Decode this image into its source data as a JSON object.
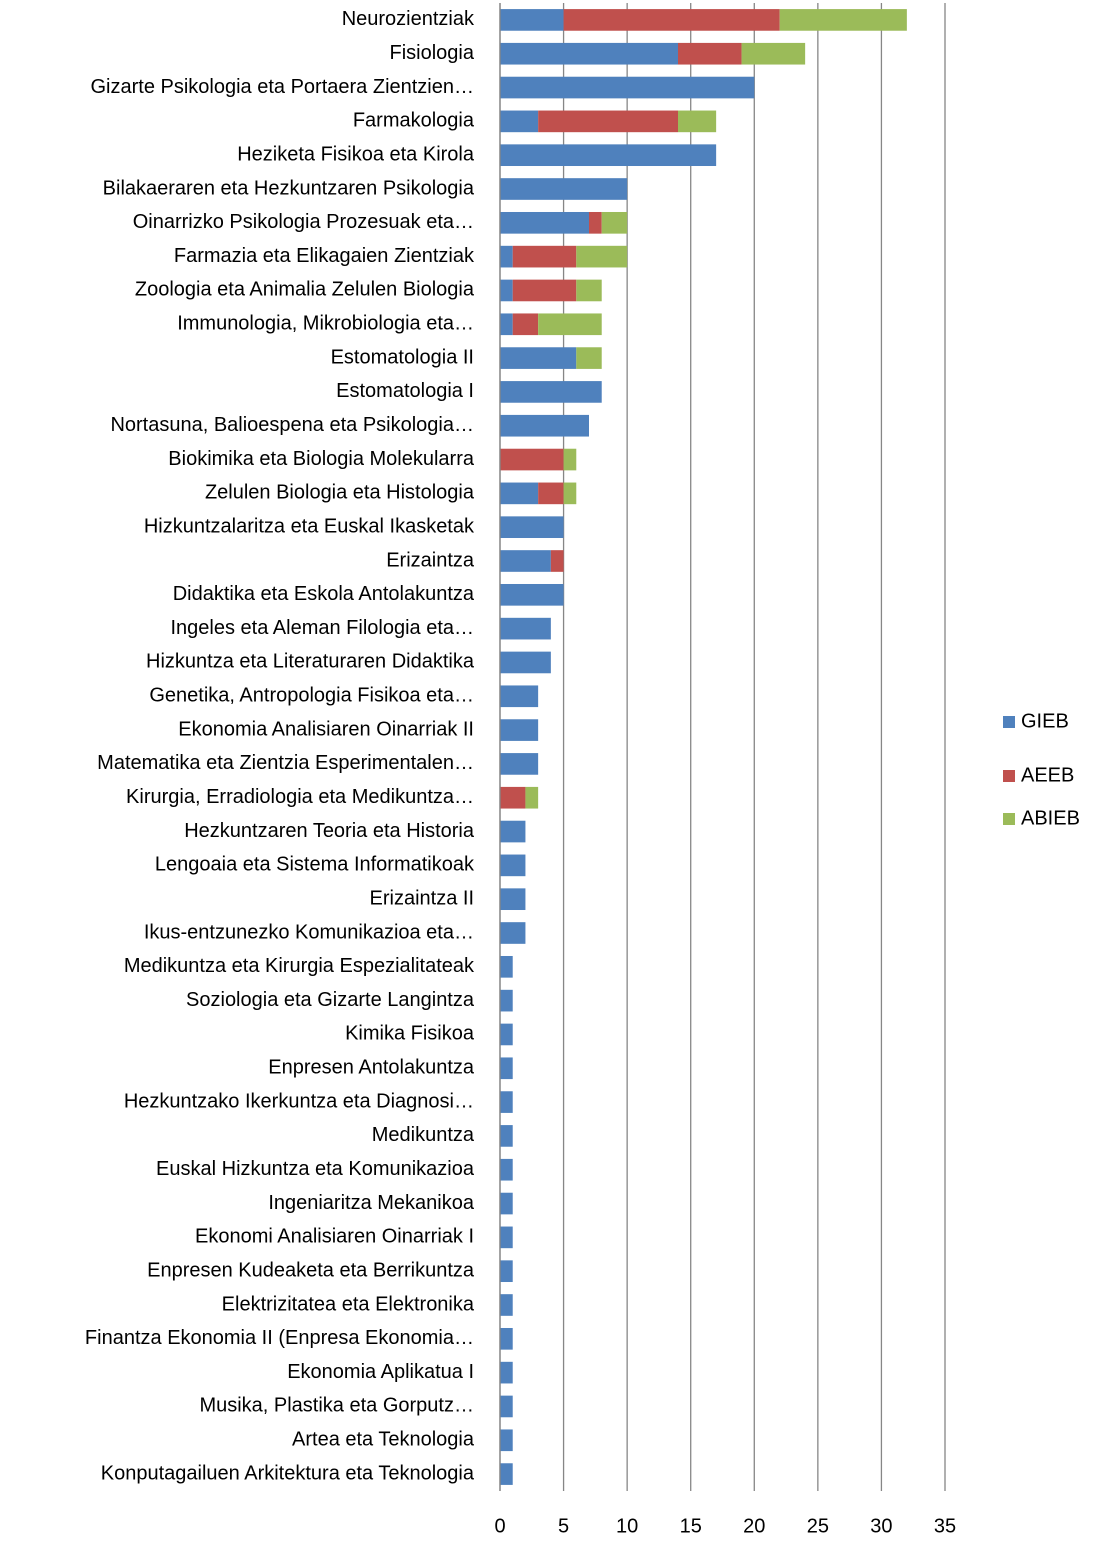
{
  "chart_data": {
    "type": "hbar_stacked",
    "categories": [
      "Neurozientziak",
      "Fisiologia",
      "Gizarte Psikologia eta Portaera Zientzien…",
      "Farmakologia",
      "Heziketa Fisikoa eta Kirola",
      "Bilakaeraren eta Hezkuntzaren Psikologia",
      "Oinarrizko Psikologia Prozesuak eta…",
      "Farmazia eta Elikagaien Zientziak",
      "Zoologia eta Animalia Zelulen Biologia",
      "Immunologia, Mikrobiologia eta…",
      "Estomatologia II",
      "Estomatologia I",
      "Nortasuna, Balioespena eta Psikologia…",
      "Biokimika eta Biologia Molekularra",
      "Zelulen Biologia eta Histologia",
      "Hizkuntzalaritza eta Euskal Ikasketak",
      "Erizaintza",
      "Didaktika eta Eskola Antolakuntza",
      "Ingeles eta Aleman Filologia eta…",
      "Hizkuntza eta Literaturaren Didaktika",
      "Genetika, Antropologia Fisikoa eta…",
      "Ekonomia Analisiaren Oinarriak II",
      "Matematika eta Zientzia Esperimentalen…",
      "Kirurgia, Erradiologia eta Medikuntza…",
      "Hezkuntzaren Teoria eta Historia",
      "Lengoaia eta Sistema Informatikoak",
      "Erizaintza II",
      "Ikus-entzunezko Komunikazioa eta…",
      "Medikuntza eta Kirurgia Espezialitateak",
      "Soziologia eta Gizarte Langintza",
      "Kimika Fisikoa",
      "Enpresen Antolakuntza",
      "Hezkuntzako Ikerkuntza eta Diagnosi…",
      "Medikuntza",
      "Euskal Hizkuntza eta Komunikazioa",
      "Ingeniaritza Mekanikoa",
      "Ekonomi Analisiaren Oinarriak I",
      "Enpresen Kudeaketa eta Berrikuntza",
      "Elektrizitatea eta Elektronika",
      "Finantza Ekonomia II (Enpresa Ekonomia…",
      "Ekonomia Aplikatua I",
      "Musika, Plastika eta Gorputz…",
      "Artea eta Teknologia",
      "Konputagailuen Arkitektura eta Teknologia"
    ],
    "series": [
      {
        "name": "GIEB",
        "color": "#4f81bd",
        "values": [
          5,
          14,
          20,
          3,
          17,
          10,
          7,
          1,
          1,
          1,
          6,
          8,
          7,
          0,
          3,
          5,
          4,
          5,
          4,
          4,
          3,
          3,
          3,
          0,
          2,
          2,
          2,
          2,
          1,
          1,
          1,
          1,
          1,
          1,
          1,
          1,
          1,
          1,
          1,
          1,
          1,
          1,
          1,
          1
        ]
      },
      {
        "name": "AEEB",
        "color": "#c0504d",
        "values": [
          17,
          5,
          0,
          11,
          0,
          0,
          1,
          5,
          5,
          2,
          0,
          0,
          0,
          5,
          2,
          0,
          1,
          0,
          0,
          0,
          0,
          0,
          0,
          2,
          0,
          0,
          0,
          0,
          0,
          0,
          0,
          0,
          0,
          0,
          0,
          0,
          0,
          0,
          0,
          0,
          0,
          0,
          0,
          0
        ]
      },
      {
        "name": "ABIEB",
        "color": "#9bbb59",
        "values": [
          10,
          5,
          0,
          3,
          0,
          0,
          2,
          4,
          2,
          5,
          2,
          0,
          0,
          1,
          1,
          0,
          0,
          0,
          0,
          0,
          0,
          0,
          0,
          1,
          0,
          0,
          0,
          0,
          0,
          0,
          0,
          0,
          0,
          0,
          0,
          0,
          0,
          0,
          0,
          0,
          0,
          0,
          0,
          0
        ]
      }
    ],
    "xlim": [
      0,
      35
    ],
    "xticks": [
      0,
      5,
      10,
      15,
      20,
      25,
      30,
      35
    ],
    "grid": true,
    "legend": "right"
  }
}
